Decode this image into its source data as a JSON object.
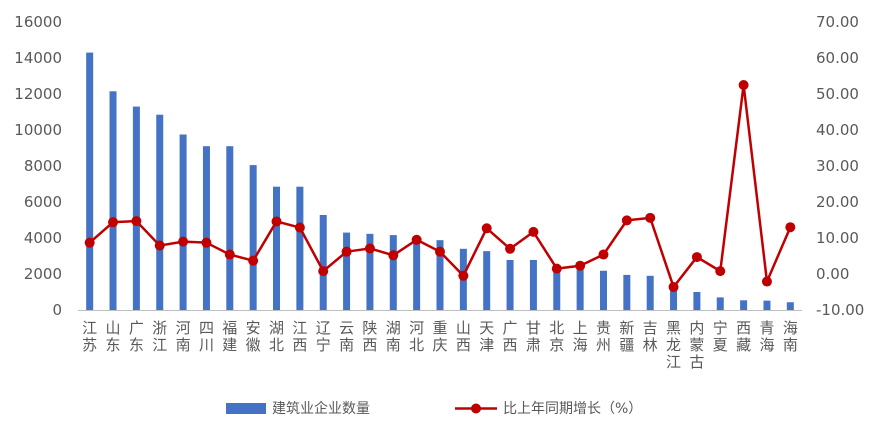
{
  "chart_data": {
    "type": "bar",
    "categories": [
      "江苏",
      "山东",
      "广东",
      "浙江",
      "河南",
      "四川",
      "福建",
      "安徽",
      "湖北",
      "江西",
      "辽宁",
      "云南",
      "陕西",
      "湖南",
      "河北",
      "重庆",
      "山西",
      "天津",
      "广西",
      "甘肃",
      "北京",
      "上海",
      "贵州",
      "新疆",
      "吉林",
      "黑龙江",
      "内蒙古",
      "宁夏",
      "西藏",
      "青海",
      "海南"
    ],
    "series": [
      {
        "name": "建筑业企业数量",
        "type": "bar",
        "axis": "left",
        "color": "#4472C4",
        "values": [
          14300,
          12150,
          11300,
          10850,
          9750,
          9100,
          9100,
          8050,
          6850,
          6850,
          5280,
          4300,
          4230,
          4160,
          4000,
          3880,
          3400,
          3270,
          2780,
          2780,
          2450,
          2400,
          2180,
          1950,
          1900,
          1400,
          1000,
          700,
          540,
          520,
          430
        ]
      },
      {
        "name": "比上年同期增长（%）",
        "type": "line",
        "axis": "right",
        "color": "#C00000",
        "values": [
          8.7,
          14.4,
          14.7,
          7.9,
          9.0,
          8.7,
          5.4,
          3.7,
          14.6,
          12.9,
          0.8,
          6.2,
          7.1,
          5.2,
          9.5,
          6.2,
          -0.5,
          12.7,
          7.0,
          11.7,
          1.5,
          2.3,
          5.4,
          14.9,
          15.6,
          -3.6,
          4.7,
          0.8,
          52.5,
          -2.1,
          13.0
        ]
      }
    ],
    "left_axis": {
      "min": 0,
      "max": 16000,
      "ticks": [
        "0",
        "2000",
        "4000",
        "6000",
        "8000",
        "10000",
        "12000",
        "14000",
        "16000"
      ]
    },
    "right_axis": {
      "min": -10,
      "max": 70,
      "ticks": [
        "-10.00",
        "0.00",
        "10.00",
        "20.00",
        "30.00",
        "40.00",
        "50.00",
        "60.00",
        "70.00"
      ]
    },
    "grid": false,
    "legend_position": "bottom"
  }
}
